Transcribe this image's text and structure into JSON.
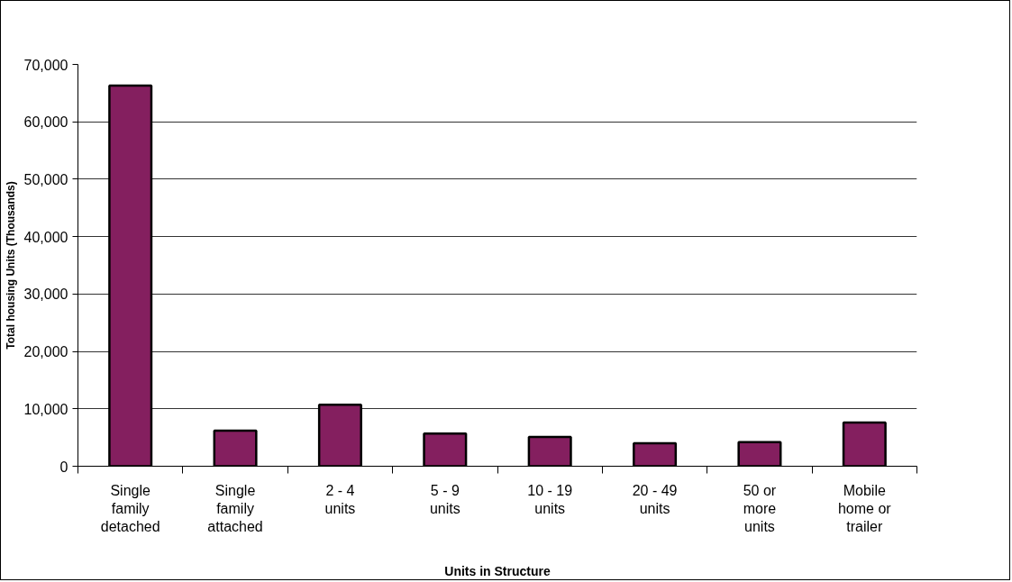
{
  "chart_data": {
    "type": "bar",
    "xlabel": "Units in Structure",
    "ylabel": "Total housing Units (Thousands)",
    "categories": [
      "Single family detached",
      "Single family attached",
      "2 - 4 units",
      "5 - 9 units",
      "10 - 19 units",
      "20 - 49 units",
      "50 or more units",
      "Mobile home or trailer"
    ],
    "values": [
      66300,
      6200,
      10700,
      5700,
      5100,
      4000,
      4200,
      7600
    ],
    "color": "#841f5f",
    "ylim": [
      0,
      70000
    ],
    "yticks": [
      0,
      {
        "value": 10000,
        "label": "10,000"
      },
      {
        "value": 20000,
        "label": "20,000"
      },
      {
        "value": 30000,
        "label": "30,000"
      },
      {
        "value": 40000,
        "label": "40,000"
      },
      {
        "value": 50000,
        "label": "50,000"
      },
      {
        "value": 60000,
        "label": "60,000"
      },
      {
        "value": 70000,
        "label": "70,000"
      }
    ],
    "grid": "y"
  }
}
